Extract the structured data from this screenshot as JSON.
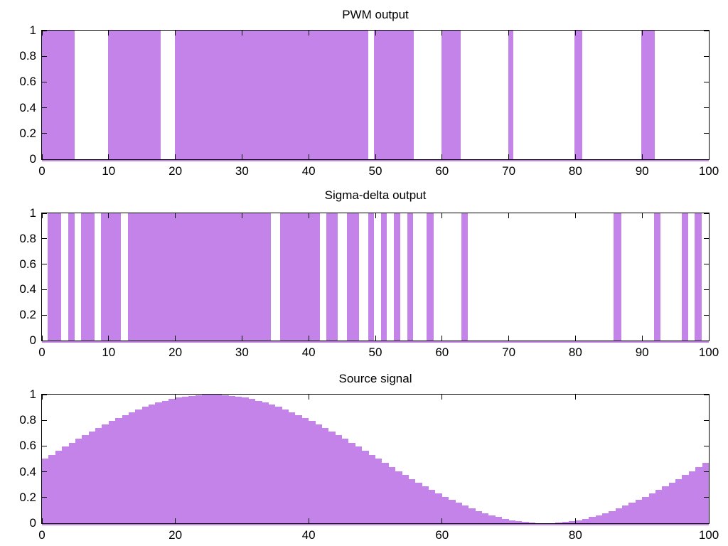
{
  "background": "#ffffff",
  "colors": {
    "fill": "#c383e8",
    "baseline": "#c383e8",
    "axis": "#000000",
    "text": "#000000"
  },
  "chart_data": [
    {
      "type": "area",
      "title": "PWM output",
      "xlabel": "",
      "ylabel": "",
      "xlim": [
        0,
        100
      ],
      "ylim": [
        0,
        1
      ],
      "grid": false,
      "legend": "none",
      "x_tick_labels": [
        "0",
        "10",
        "20",
        "30",
        "40",
        "50",
        "60",
        "70",
        "80",
        "90",
        "100"
      ],
      "y_tick_labels": [
        "0",
        "0.2",
        "0.4",
        "0.6",
        "0.8",
        "1"
      ],
      "signal_levels": [
        0,
        1
      ],
      "on_intervals": [
        [
          0,
          4.9
        ],
        [
          9.9,
          17.8
        ],
        [
          19.9,
          48.9
        ],
        [
          49.8,
          55.8
        ],
        [
          59.9,
          62.8
        ],
        [
          69.9,
          70.7
        ],
        [
          79.8,
          81.0
        ],
        [
          89.9,
          91.9
        ]
      ]
    },
    {
      "type": "area",
      "title": "Sigma-delta output",
      "xlabel": "",
      "ylabel": "",
      "xlim": [
        0,
        100
      ],
      "ylim": [
        0,
        1
      ],
      "grid": false,
      "legend": "none",
      "x_tick_labels": [
        "0",
        "10",
        "20",
        "30",
        "40",
        "50",
        "60",
        "70",
        "80",
        "90",
        "100"
      ],
      "y_tick_labels": [
        "0",
        "0.2",
        "0.4",
        "0.6",
        "0.8",
        "1"
      ],
      "signal_levels": [
        0,
        1
      ],
      "on_intervals": [
        [
          0.8,
          2.9
        ],
        [
          3.9,
          4.9
        ],
        [
          5.9,
          7.9
        ],
        [
          8.8,
          11.8
        ],
        [
          12.9,
          34.3
        ],
        [
          35.7,
          41.7
        ],
        [
          42.6,
          44.4
        ],
        [
          45.7,
          47.6
        ],
        [
          48.9,
          49.8
        ],
        [
          50.8,
          51.7
        ],
        [
          52.8,
          53.7
        ],
        [
          54.8,
          55.7
        ],
        [
          57.7,
          58.7
        ],
        [
          62.9,
          63.9
        ],
        [
          85.7,
          86.9
        ],
        [
          91.8,
          92.8
        ],
        [
          95.9,
          96.9
        ],
        [
          97.9,
          98.9
        ]
      ]
    },
    {
      "type": "bar",
      "title": "Source signal",
      "xlabel": "",
      "ylabel": "",
      "xlim": [
        0,
        100
      ],
      "ylim": [
        0,
        1
      ],
      "grid": false,
      "legend": "none",
      "x_tick_labels": [
        "0",
        "20",
        "40",
        "60",
        "80",
        "100"
      ],
      "y_tick_labels": [
        "0",
        "0.2",
        "0.4",
        "0.6",
        "0.8",
        "1"
      ],
      "bar_start_x": 0,
      "bar_width": 1,
      "values": [
        0.5,
        0.531,
        0.563,
        0.594,
        0.624,
        0.655,
        0.684,
        0.713,
        0.741,
        0.768,
        0.794,
        0.819,
        0.842,
        0.864,
        0.885,
        0.905,
        0.922,
        0.938,
        0.952,
        0.965,
        0.976,
        0.984,
        0.991,
        0.996,
        0.999,
        1.0,
        0.999,
        0.996,
        0.991,
        0.984,
        0.976,
        0.965,
        0.952,
        0.938,
        0.922,
        0.905,
        0.885,
        0.864,
        0.842,
        0.819,
        0.794,
        0.768,
        0.741,
        0.713,
        0.684,
        0.655,
        0.624,
        0.594,
        0.563,
        0.531,
        0.5,
        0.469,
        0.437,
        0.406,
        0.376,
        0.345,
        0.316,
        0.287,
        0.259,
        0.232,
        0.206,
        0.181,
        0.158,
        0.136,
        0.115,
        0.096,
        0.078,
        0.062,
        0.048,
        0.035,
        0.024,
        0.016,
        0.009,
        0.004,
        0.001,
        0.0,
        0.001,
        0.004,
        0.009,
        0.016,
        0.024,
        0.035,
        0.048,
        0.062,
        0.078,
        0.096,
        0.115,
        0.136,
        0.158,
        0.181,
        0.206,
        0.232,
        0.259,
        0.287,
        0.316,
        0.345,
        0.376,
        0.406,
        0.437,
        0.469
      ]
    }
  ]
}
